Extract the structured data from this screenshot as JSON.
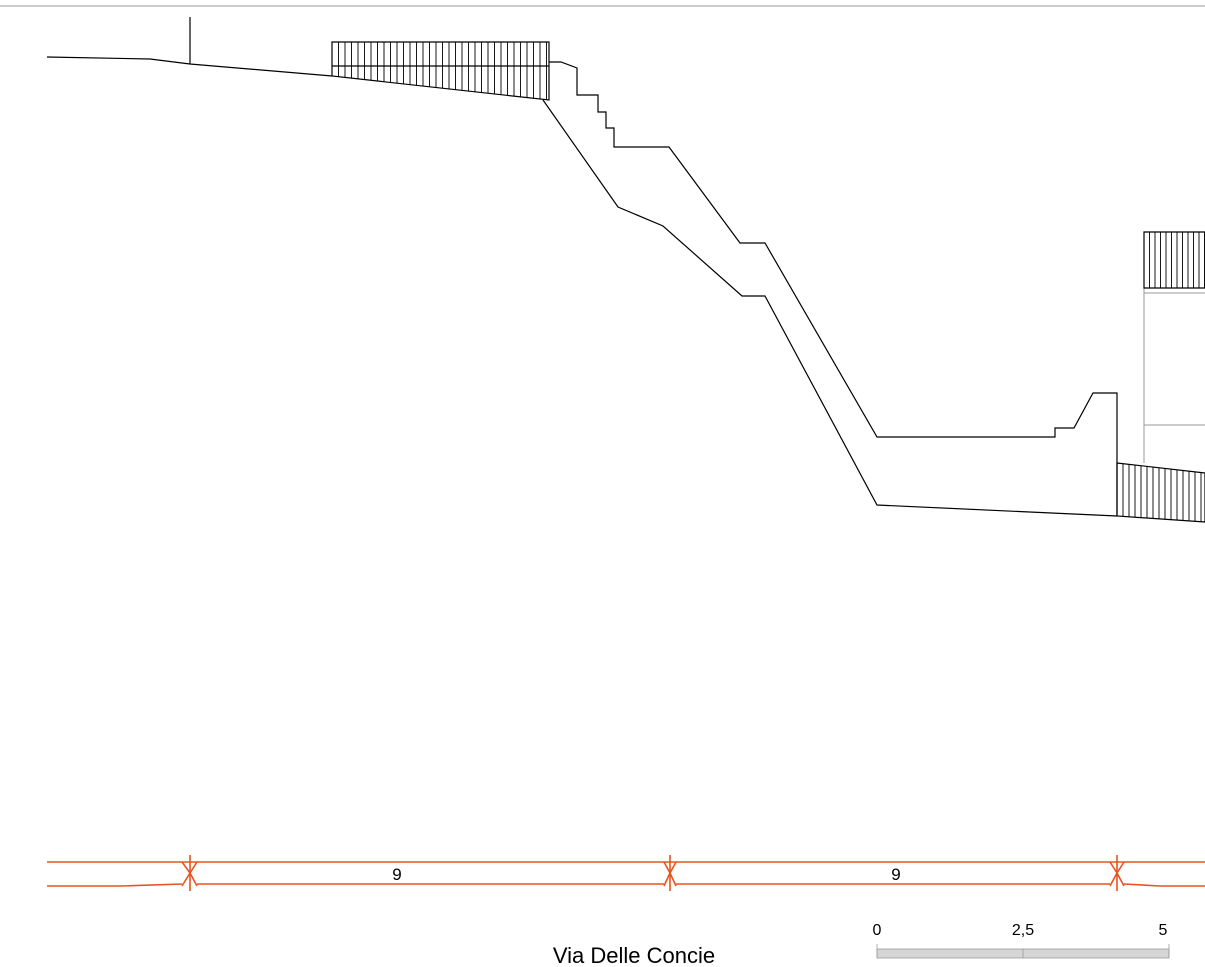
{
  "street_name": "Via Delle Concie",
  "dimensions": [
    {
      "label": "9"
    },
    {
      "label": "9"
    }
  ],
  "scale_bar": {
    "labels": [
      "0",
      "2,5",
      "5"
    ]
  },
  "colors": {
    "dimension_line": "#e8531e",
    "drawing_line": "#000000",
    "frame_line": "#9a9a9a",
    "scale_bar": "#cccccc"
  }
}
